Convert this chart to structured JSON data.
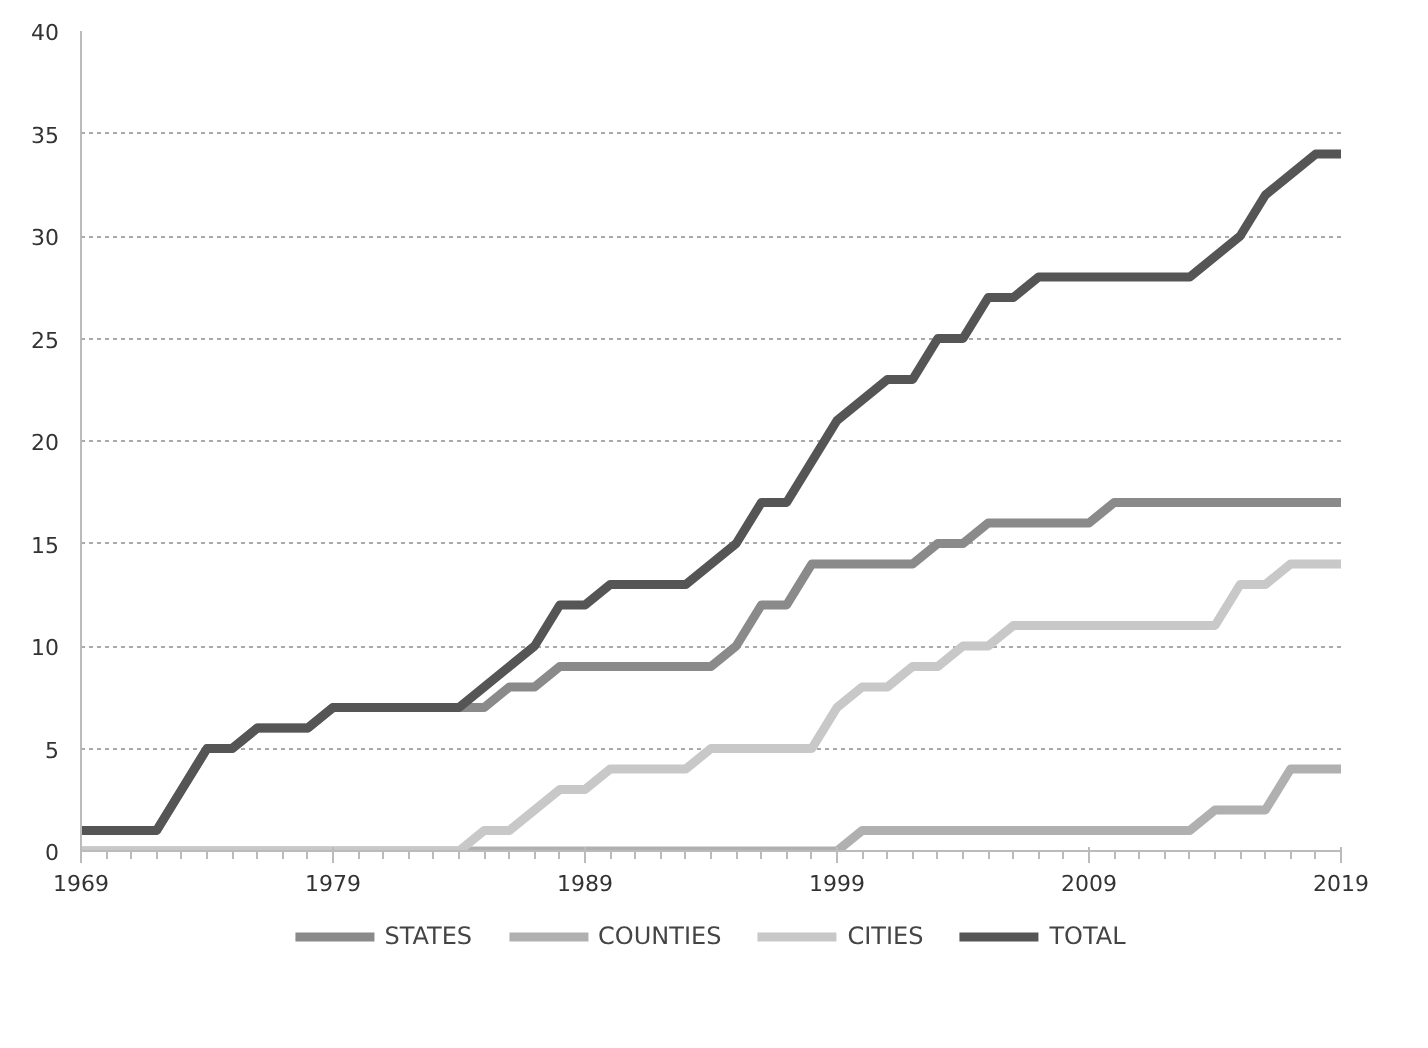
{
  "chart_data": {
    "type": "line",
    "x": [
      1969,
      1970,
      1971,
      1972,
      1973,
      1974,
      1975,
      1976,
      1977,
      1978,
      1979,
      1980,
      1981,
      1982,
      1983,
      1984,
      1985,
      1986,
      1987,
      1988,
      1989,
      1990,
      1991,
      1992,
      1993,
      1994,
      1995,
      1996,
      1997,
      1998,
      1999,
      2000,
      2001,
      2002,
      2003,
      2004,
      2005,
      2006,
      2007,
      2008,
      2009,
      2010,
      2011,
      2012,
      2013,
      2014,
      2015,
      2016,
      2017,
      2018,
      2019
    ],
    "series": [
      {
        "name": "STATES",
        "color": "#8a8a8a",
        "values": [
          1,
          1,
          1,
          1,
          3,
          5,
          5,
          6,
          6,
          6,
          7,
          7,
          7,
          7,
          7,
          7,
          7,
          8,
          8,
          9,
          9,
          9,
          9,
          9,
          9,
          9,
          10,
          12,
          12,
          14,
          14,
          14,
          14,
          14,
          15,
          15,
          16,
          16,
          16,
          16,
          16,
          17,
          17,
          17,
          17,
          17,
          17,
          17,
          17,
          17,
          17
        ]
      },
      {
        "name": "COUNTIES",
        "color": "#b0b0b0",
        "values": [
          0,
          0,
          0,
          0,
          0,
          0,
          0,
          0,
          0,
          0,
          0,
          0,
          0,
          0,
          0,
          0,
          0,
          0,
          0,
          0,
          0,
          0,
          0,
          0,
          0,
          0,
          0,
          0,
          0,
          0,
          0,
          1,
          1,
          1,
          1,
          1,
          1,
          1,
          1,
          1,
          1,
          1,
          1,
          1,
          1,
          2,
          2,
          2,
          4,
          4,
          4
        ]
      },
      {
        "name": "CITIES",
        "color": "#c8c8c8",
        "values": [
          0,
          0,
          0,
          0,
          0,
          0,
          0,
          0,
          0,
          0,
          0,
          0,
          0,
          0,
          0,
          0,
          1,
          1,
          2,
          3,
          3,
          4,
          4,
          4,
          4,
          5,
          5,
          5,
          5,
          5,
          7,
          8,
          8,
          9,
          9,
          10,
          10,
          11,
          11,
          11,
          11,
          11,
          11,
          11,
          11,
          11,
          13,
          13,
          14,
          14,
          14
        ]
      },
      {
        "name": "TOTAL",
        "color": "#555555",
        "values": [
          1,
          1,
          1,
          1,
          3,
          5,
          5,
          6,
          6,
          6,
          7,
          7,
          7,
          7,
          7,
          7,
          8,
          9,
          10,
          12,
          12,
          13,
          13,
          13,
          13,
          14,
          15,
          17,
          17,
          19,
          21,
          22,
          23,
          23,
          25,
          25,
          27,
          27,
          28,
          28,
          28,
          28,
          28,
          28,
          28,
          29,
          30,
          32,
          33,
          34,
          34
        ]
      }
    ],
    "xlim": [
      1969,
      2019
    ],
    "xticks": [
      1969,
      1979,
      1989,
      1999,
      2009,
      2019
    ],
    "ylim": [
      0,
      40
    ],
    "yticks": [
      0,
      5,
      10,
      15,
      20,
      25,
      30,
      35,
      40
    ],
    "grid": "y",
    "legend": "bottom",
    "marker": "none",
    "line_style": "solid"
  }
}
